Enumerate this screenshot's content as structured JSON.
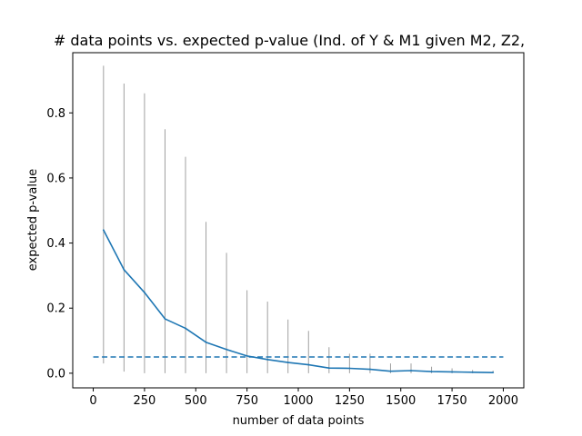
{
  "chart_data": {
    "type": "line",
    "title": "# data points vs. expected p-value (Ind. of Y & M1 given M2, Z2,",
    "xlabel": "number of data points",
    "ylabel": "expected p-value",
    "xlim": [
      -100,
      2100
    ],
    "ylim": [
      -0.045,
      0.985
    ],
    "xticks": [
      0,
      250,
      500,
      750,
      1000,
      1250,
      1500,
      1750,
      2000
    ],
    "yticks": [
      0.0,
      0.2,
      0.4,
      0.6,
      0.8
    ],
    "grid": false,
    "colors": {
      "line": "#1f77b4",
      "threshold": "#1f77b4",
      "range": "#a0a0a0"
    },
    "series": [
      {
        "values": [
          {
            "x": 50,
            "y": 0.44
          },
          {
            "x": 150,
            "y": 0.318
          },
          {
            "x": 250,
            "y": 0.248
          },
          {
            "x": 350,
            "y": 0.167
          },
          {
            "x": 450,
            "y": 0.138
          },
          {
            "x": 550,
            "y": 0.095
          },
          {
            "x": 650,
            "y": 0.073
          },
          {
            "x": 750,
            "y": 0.053
          },
          {
            "x": 850,
            "y": 0.042
          },
          {
            "x": 950,
            "y": 0.033
          },
          {
            "x": 1050,
            "y": 0.026
          },
          {
            "x": 1150,
            "y": 0.016
          },
          {
            "x": 1250,
            "y": 0.015
          },
          {
            "x": 1350,
            "y": 0.012
          },
          {
            "x": 1450,
            "y": 0.006
          },
          {
            "x": 1550,
            "y": 0.008
          },
          {
            "x": 1650,
            "y": 0.005
          },
          {
            "x": 1750,
            "y": 0.004
          },
          {
            "x": 1850,
            "y": 0.003
          },
          {
            "x": 1950,
            "y": 0.002
          }
        ]
      }
    ],
    "ranges": [
      {
        "x": 50,
        "min": 0.03,
        "max": 0.945
      },
      {
        "x": 150,
        "min": 0.005,
        "max": 0.89
      },
      {
        "x": 250,
        "min": 0.0,
        "max": 0.86
      },
      {
        "x": 350,
        "min": 0.0,
        "max": 0.75
      },
      {
        "x": 450,
        "min": 0.0,
        "max": 0.665
      },
      {
        "x": 550,
        "min": 0.0,
        "max": 0.465
      },
      {
        "x": 650,
        "min": 0.0,
        "max": 0.37
      },
      {
        "x": 750,
        "min": 0.0,
        "max": 0.255
      },
      {
        "x": 850,
        "min": 0.0,
        "max": 0.22
      },
      {
        "x": 950,
        "min": 0.0,
        "max": 0.165
      },
      {
        "x": 1050,
        "min": 0.0,
        "max": 0.13
      },
      {
        "x": 1150,
        "min": 0.0,
        "max": 0.08
      },
      {
        "x": 1250,
        "min": 0.0,
        "max": 0.06
      },
      {
        "x": 1350,
        "min": 0.0,
        "max": 0.06
      },
      {
        "x": 1450,
        "min": 0.0,
        "max": 0.03
      },
      {
        "x": 1550,
        "min": 0.0,
        "max": 0.03
      },
      {
        "x": 1650,
        "min": 0.0,
        "max": 0.02
      },
      {
        "x": 1750,
        "min": 0.0,
        "max": 0.015
      },
      {
        "x": 1850,
        "min": 0.0,
        "max": 0.01
      },
      {
        "x": 1950,
        "min": 0.0,
        "max": 0.008
      }
    ],
    "threshold": {
      "y": 0.05,
      "x_from": 0,
      "x_to": 2000,
      "style": "dashed"
    }
  }
}
